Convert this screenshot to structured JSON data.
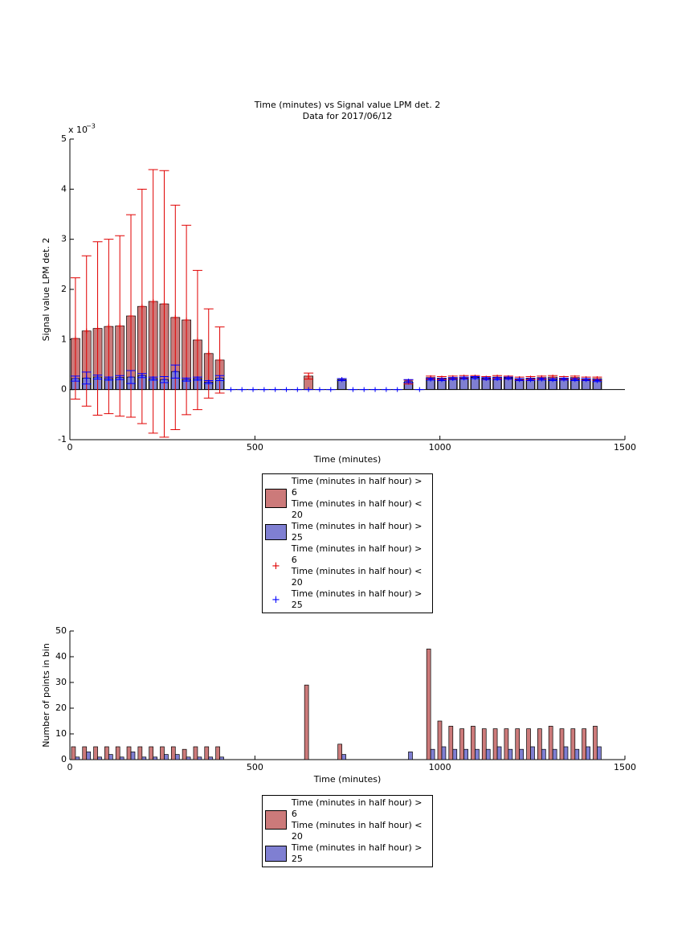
{
  "chart_data": [
    {
      "type": "bar",
      "barmode": "overlay",
      "title": "Time (minutes) vs Signal value LPM det. 2",
      "subtitle": "Data for 2017/06/12",
      "multiplier": "x 10",
      "multiplier_exponent": "−3",
      "xlabel": "Time (minutes)",
      "ylabel": "Signal value LPM det. 2",
      "x": [
        15,
        45,
        75,
        105,
        135,
        165,
        195,
        225,
        255,
        285,
        315,
        345,
        375,
        405,
        435,
        465,
        495,
        525,
        555,
        585,
        615,
        645,
        675,
        705,
        735,
        765,
        795,
        825,
        855,
        885,
        915,
        945,
        975,
        1005,
        1035,
        1065,
        1095,
        1125,
        1155,
        1185,
        1215,
        1245,
        1275,
        1305,
        1335,
        1365,
        1395,
        1425
      ],
      "xlim": [
        0,
        1500
      ],
      "xticks": [
        0,
        500,
        1000,
        1500
      ],
      "ylim": [
        -1,
        5
      ],
      "yticks": [
        -1,
        0,
        1,
        2,
        3,
        4,
        5
      ],
      "series": [
        {
          "name": "Time (minutes in half hour) > 6\nTime (minutes in half hour) < 20",
          "color": "#cc7a7a",
          "values": [
            1.02,
            1.17,
            1.22,
            1.26,
            1.27,
            1.47,
            1.66,
            1.76,
            1.71,
            1.44,
            1.39,
            0.99,
            0.72,
            0.59,
            null,
            null,
            null,
            null,
            null,
            null,
            null,
            0.27,
            null,
            null,
            0.2,
            null,
            null,
            null,
            null,
            null,
            0.15,
            null,
            0.24,
            0.23,
            0.24,
            0.25,
            0.25,
            0.23,
            0.25,
            0.24,
            0.22,
            0.23,
            0.24,
            0.25,
            0.23,
            0.24,
            0.22,
            0.22
          ]
        },
        {
          "name": "Time (minutes in half hour) > 25",
          "color": "#7f7fd2",
          "values": [
            0.22,
            0.23,
            0.25,
            0.22,
            0.24,
            0.25,
            0.28,
            0.22,
            0.2,
            0.36,
            0.2,
            0.22,
            0.15,
            0.23,
            null,
            null,
            null,
            null,
            null,
            null,
            null,
            null,
            null,
            null,
            0.2,
            null,
            null,
            null,
            null,
            null,
            0.17,
            null,
            0.21,
            0.2,
            0.22,
            0.23,
            0.24,
            0.22,
            0.22,
            0.23,
            0.2,
            0.2,
            0.21,
            0.2,
            0.21,
            0.2,
            0.2,
            0.18
          ]
        },
        {
          "type": "errorbar",
          "name": "Time (minutes in half hour) > 6\nTime (minutes in half hour) < 20",
          "color": "#e00000",
          "values": [
            1.02,
            1.17,
            1.22,
            1.26,
            1.27,
            1.47,
            1.66,
            1.76,
            1.71,
            1.44,
            1.39,
            0.99,
            0.72,
            0.59,
            null,
            null,
            null,
            null,
            null,
            null,
            null,
            0.27,
            null,
            null,
            0.2,
            null,
            null,
            null,
            null,
            null,
            0.15,
            null,
            0.24,
            0.23,
            0.24,
            0.25,
            0.25,
            0.23,
            0.25,
            0.24,
            0.22,
            0.23,
            0.24,
            0.25,
            0.23,
            0.24,
            0.22,
            0.22
          ],
          "errors": [
            1.21,
            1.5,
            1.73,
            1.74,
            1.8,
            2.02,
            2.34,
            2.63,
            2.66,
            2.24,
            1.89,
            1.39,
            0.89,
            0.66,
            null,
            null,
            null,
            null,
            null,
            null,
            null,
            0.06,
            null,
            null,
            0.02,
            null,
            null,
            null,
            null,
            null,
            0.04,
            null,
            0.03,
            0.03,
            0.03,
            0.03,
            0.03,
            0.03,
            0.03,
            0.03,
            0.03,
            0.03,
            0.03,
            0.03,
            0.03,
            0.03,
            0.03,
            0.03
          ]
        },
        {
          "type": "errorbar",
          "name": "Time (minutes in half hour) > 25",
          "color": "#0000ff",
          "values": [
            0.22,
            0.23,
            0.25,
            0.22,
            0.24,
            0.25,
            0.28,
            0.22,
            0.2,
            0.36,
            0.2,
            0.22,
            0.15,
            0.23,
            0,
            0,
            0,
            0,
            0,
            0,
            0,
            0,
            0,
            0,
            0.2,
            0,
            0,
            0,
            0,
            0,
            0.17,
            0,
            0.21,
            0.2,
            0.22,
            0.23,
            0.24,
            0.22,
            0.22,
            0.23,
            0.2,
            0.2,
            0.21,
            0.2,
            0.21,
            0.2,
            0.2,
            0.18
          ],
          "errors": [
            0.05,
            0.12,
            0.04,
            0.03,
            0.04,
            0.13,
            0.04,
            0.03,
            0.06,
            0.13,
            0.03,
            0.03,
            0.03,
            0.05,
            0,
            0,
            0,
            0,
            0,
            0,
            0,
            0,
            0,
            0,
            0.02,
            0,
            0,
            0,
            0,
            0,
            0.03,
            0,
            0.02,
            0.02,
            0.02,
            0.02,
            0.02,
            0.02,
            0.02,
            0.02,
            0.02,
            0.02,
            0.02,
            0.02,
            0.02,
            0.02,
            0.02,
            0.02
          ]
        }
      ]
    },
    {
      "type": "bar",
      "barmode": "grouped",
      "xlabel": "Time (minutes)",
      "ylabel": "Number of points in bin",
      "x": [
        15,
        45,
        75,
        105,
        135,
        165,
        195,
        225,
        255,
        285,
        315,
        345,
        375,
        405,
        435,
        465,
        495,
        525,
        555,
        585,
        615,
        645,
        675,
        705,
        735,
        765,
        795,
        825,
        855,
        885,
        915,
        945,
        975,
        1005,
        1035,
        1065,
        1095,
        1125,
        1155,
        1185,
        1215,
        1245,
        1275,
        1305,
        1335,
        1365,
        1395,
        1425
      ],
      "xlim": [
        0,
        1500
      ],
      "xticks": [
        0,
        500,
        1000,
        1500
      ],
      "ylim": [
        0,
        50
      ],
      "yticks": [
        0,
        10,
        20,
        30,
        40,
        50
      ],
      "series": [
        {
          "name": "Time (minutes in half hour) > 6\nTime (minutes in half hour) < 20",
          "color": "#cc7a7a",
          "values": [
            5,
            5,
            5,
            5,
            5,
            5,
            5,
            5,
            5,
            5,
            4,
            5,
            5,
            5,
            0,
            0,
            0,
            0,
            0,
            0,
            0,
            29,
            0,
            0,
            6,
            0,
            0,
            0,
            0,
            0,
            0,
            0,
            43,
            15,
            13,
            12,
            13,
            12,
            12,
            12,
            12,
            12,
            12,
            13,
            12,
            12,
            12,
            13
          ]
        },
        {
          "name": "Time (minutes in half hour) > 25",
          "color": "#7f7fd2",
          "values": [
            1,
            3,
            1,
            2,
            1,
            3,
            1,
            1,
            2,
            2,
            1,
            1,
            1,
            1,
            0,
            0,
            0,
            0,
            0,
            0,
            0,
            0,
            0,
            0,
            2,
            0,
            0,
            0,
            0,
            0,
            3,
            0,
            4,
            5,
            4,
            4,
            4,
            4,
            5,
            4,
            4,
            5,
            4,
            4,
            5,
            4,
            5,
            5
          ]
        }
      ]
    }
  ]
}
